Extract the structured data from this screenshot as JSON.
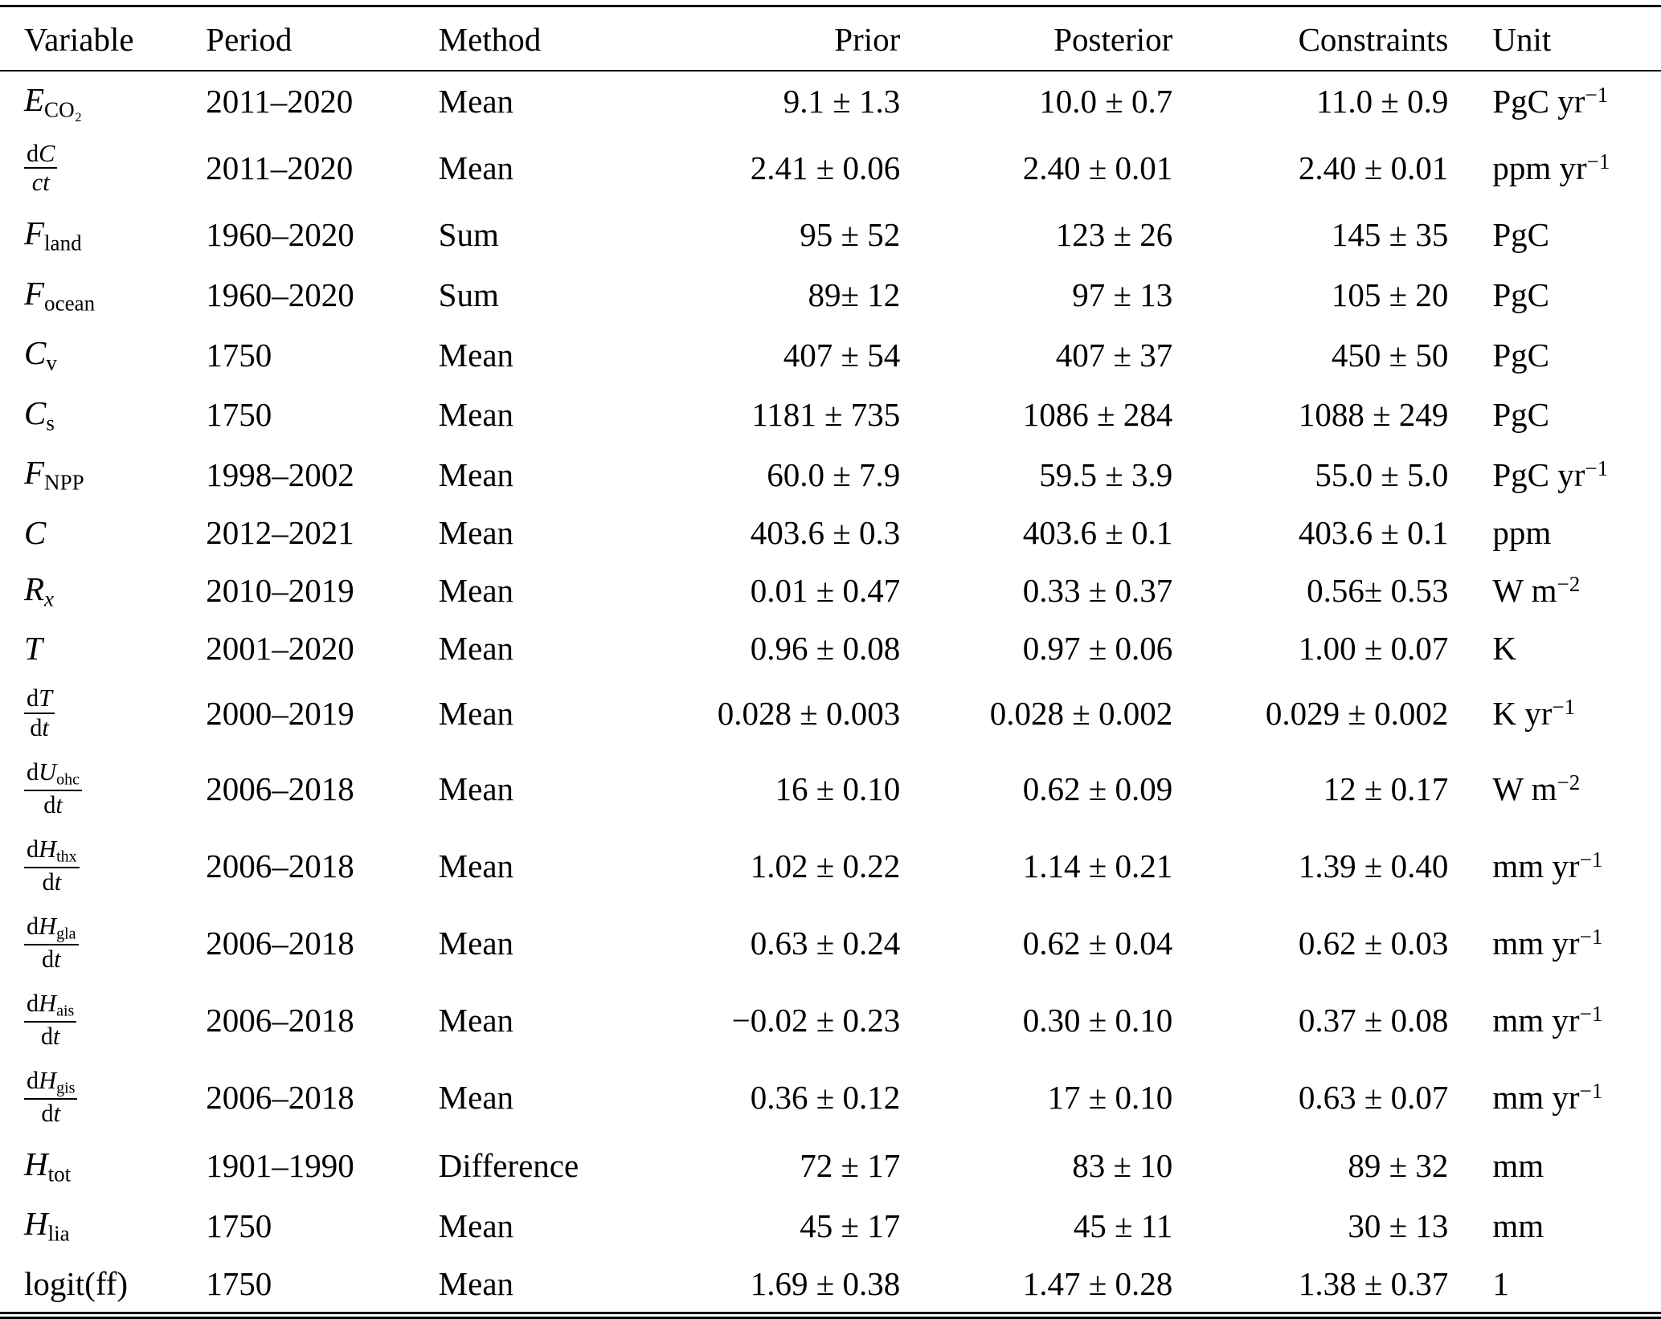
{
  "table": {
    "columns": [
      {
        "label": "Variable",
        "align": "left"
      },
      {
        "label": "Period",
        "align": "left"
      },
      {
        "label": "Method",
        "align": "left"
      },
      {
        "label": "Prior",
        "align": "right"
      },
      {
        "label": "Posterior",
        "align": "right"
      },
      {
        "label": "Constraints",
        "align": "right"
      },
      {
        "label": "Unit",
        "align": "left"
      }
    ],
    "rows": [
      {
        "variable": {
          "inline": [
            {
              "t": "E",
              "s": "it"
            },
            {
              "t": "CO₂",
              "s": "sub"
            }
          ]
        },
        "period": "2011–2020",
        "method": "Mean",
        "prior": "9.1 ± 1.3",
        "posterior": "10.0 ± 0.7",
        "constraints": "11.0 ± 0.9",
        "unit": {
          "text": "PgC yr",
          "sup": "−1"
        }
      },
      {
        "variable": {
          "frac": {
            "num": [
              {
                "t": "d",
                "s": "up"
              },
              {
                "t": "C",
                "s": "it"
              }
            ],
            "den": [
              {
                "t": "ct",
                "s": "it"
              }
            ]
          }
        },
        "period": "2011–2020",
        "method": "Mean",
        "prior": "2.41 ± 0.06",
        "posterior": "2.40 ± 0.01",
        "constraints": "2.40 ± 0.01",
        "unit": {
          "text": "ppm yr",
          "sup": "−1"
        }
      },
      {
        "variable": {
          "inline": [
            {
              "t": "F",
              "s": "it"
            },
            {
              "t": "land",
              "s": "sub"
            }
          ]
        },
        "period": "1960–2020",
        "method": "Sum",
        "prior": "95 ± 52",
        "posterior": "123 ± 26",
        "constraints": "145 ± 35",
        "unit": {
          "text": "PgC"
        }
      },
      {
        "variable": {
          "inline": [
            {
              "t": "F",
              "s": "it"
            },
            {
              "t": "ocean",
              "s": "sub"
            }
          ]
        },
        "period": "1960–2020",
        "method": "Sum",
        "prior": "89± 12",
        "posterior": "97 ± 13",
        "constraints": "105 ± 20",
        "unit": {
          "text": "PgC"
        }
      },
      {
        "variable": {
          "inline": [
            {
              "t": "C",
              "s": "it"
            },
            {
              "t": "v",
              "s": "sub"
            }
          ]
        },
        "period": "1750",
        "method": "Mean",
        "prior": "407 ± 54",
        "posterior": "407 ± 37",
        "constraints": "450 ± 50",
        "unit": {
          "text": "PgC"
        }
      },
      {
        "variable": {
          "inline": [
            {
              "t": "C",
              "s": "it"
            },
            {
              "t": "s",
              "s": "sub"
            }
          ]
        },
        "period": "1750",
        "method": "Mean",
        "prior": "1181 ± 735",
        "posterior": "1086 ± 284",
        "constraints": "1088 ± 249",
        "unit": {
          "text": "PgC"
        }
      },
      {
        "variable": {
          "inline": [
            {
              "t": "F",
              "s": "it"
            },
            {
              "t": "NPP",
              "s": "sub"
            }
          ]
        },
        "period": "1998–2002",
        "method": "Mean",
        "prior": "60.0 ± 7.9",
        "posterior": "59.5 ± 3.9",
        "constraints": "55.0 ± 5.0",
        "unit": {
          "text": "PgC yr",
          "sup": "−1"
        }
      },
      {
        "variable": {
          "inline": [
            {
              "t": "C",
              "s": "it"
            }
          ]
        },
        "period": "2012–2021",
        "method": "Mean",
        "prior": "403.6 ± 0.3",
        "posterior": "403.6 ± 0.1",
        "constraints": "403.6 ± 0.1",
        "unit": {
          "text": "ppm"
        }
      },
      {
        "variable": {
          "inline": [
            {
              "t": "R",
              "s": "it"
            },
            {
              "t": "x",
              "s": "subit"
            }
          ]
        },
        "period": "2010–2019",
        "method": "Mean",
        "prior": "0.01 ± 0.47",
        "posterior": "0.33 ± 0.37",
        "constraints": "0.56± 0.53",
        "unit": {
          "text": "W m",
          "sup": "−2"
        }
      },
      {
        "variable": {
          "inline": [
            {
              "t": "T",
              "s": "it"
            }
          ]
        },
        "period": "2001–2020",
        "method": "Mean",
        "prior": "0.96 ± 0.08",
        "posterior": "0.97 ± 0.06",
        "constraints": "1.00 ± 0.07",
        "unit": {
          "text": "K"
        }
      },
      {
        "variable": {
          "frac": {
            "num": [
              {
                "t": "d",
                "s": "up"
              },
              {
                "t": "T",
                "s": "it"
              }
            ],
            "den": [
              {
                "t": "d",
                "s": "up"
              },
              {
                "t": "t",
                "s": "it"
              }
            ]
          }
        },
        "period": "2000–2019",
        "method": "Mean",
        "prior": "0.028 ± 0.003",
        "posterior": "0.028 ± 0.002",
        "constraints": "0.029 ± 0.002",
        "unit": {
          "text": "K yr",
          "sup": "−1"
        }
      },
      {
        "variable": {
          "frac": {
            "num": [
              {
                "t": "d",
                "s": "up"
              },
              {
                "t": "U",
                "s": "it"
              },
              {
                "t": "ohc",
                "s": "sub"
              }
            ],
            "den": [
              {
                "t": "d",
                "s": "up"
              },
              {
                "t": "t",
                "s": "it"
              }
            ]
          }
        },
        "period": "2006–2018",
        "method": "Mean",
        "prior": "16 ± 0.10",
        "posterior": "0.62 ± 0.09",
        "constraints": "12 ± 0.17",
        "unit": {
          "text": "W m",
          "sup": "−2"
        }
      },
      {
        "variable": {
          "frac": {
            "num": [
              {
                "t": "d",
                "s": "up"
              },
              {
                "t": "H",
                "s": "it"
              },
              {
                "t": "thx",
                "s": "sub"
              }
            ],
            "den": [
              {
                "t": "d",
                "s": "up"
              },
              {
                "t": "t",
                "s": "it"
              }
            ]
          }
        },
        "period": "2006–2018",
        "method": "Mean",
        "prior": "1.02 ± 0.22",
        "posterior": "1.14 ± 0.21",
        "constraints": "1.39 ± 0.40",
        "unit": {
          "text": "mm yr",
          "sup": "−1"
        }
      },
      {
        "variable": {
          "frac": {
            "num": [
              {
                "t": "d",
                "s": "up"
              },
              {
                "t": "H",
                "s": "it"
              },
              {
                "t": "gla",
                "s": "sub"
              }
            ],
            "den": [
              {
                "t": "d",
                "s": "up"
              },
              {
                "t": "t",
                "s": "it"
              }
            ]
          }
        },
        "period": "2006–2018",
        "method": "Mean",
        "prior": "0.63 ± 0.24",
        "posterior": "0.62 ± 0.04",
        "constraints": "0.62 ± 0.03",
        "unit": {
          "text": "mm yr",
          "sup": "−1"
        }
      },
      {
        "variable": {
          "frac": {
            "num": [
              {
                "t": "d",
                "s": "up"
              },
              {
                "t": "H",
                "s": "it"
              },
              {
                "t": "ais",
                "s": "sub"
              }
            ],
            "den": [
              {
                "t": "d",
                "s": "up"
              },
              {
                "t": "t",
                "s": "it"
              }
            ]
          }
        },
        "period": "2006–2018",
        "method": "Mean",
        "prior": "−0.02 ± 0.23",
        "posterior": "0.30 ± 0.10",
        "constraints": "0.37 ± 0.08",
        "unit": {
          "text": "mm yr",
          "sup": "−1"
        }
      },
      {
        "variable": {
          "frac": {
            "num": [
              {
                "t": "d",
                "s": "up"
              },
              {
                "t": "H",
                "s": "it"
              },
              {
                "t": "gis",
                "s": "sub"
              }
            ],
            "den": [
              {
                "t": "d",
                "s": "up"
              },
              {
                "t": "t",
                "s": "it"
              }
            ]
          }
        },
        "period": "2006–2018",
        "method": "Mean",
        "prior": "0.36 ± 0.12",
        "posterior": "17 ± 0.10",
        "constraints": "0.63 ± 0.07",
        "unit": {
          "text": "mm yr",
          "sup": "−1"
        }
      },
      {
        "variable": {
          "inline": [
            {
              "t": "H",
              "s": "it"
            },
            {
              "t": "tot",
              "s": "sub"
            }
          ]
        },
        "period": "1901–1990",
        "method": "Difference",
        "prior": "72 ± 17",
        "posterior": "83 ± 10",
        "constraints": "89 ± 32",
        "unit": {
          "text": "mm"
        }
      },
      {
        "variable": {
          "inline": [
            {
              "t": "H",
              "s": "it"
            },
            {
              "t": "lia",
              "s": "sub"
            }
          ]
        },
        "period": "1750",
        "method": "Mean",
        "prior": "45 ± 17",
        "posterior": "45 ± 11",
        "constraints": "30 ± 13",
        "unit": {
          "text": "mm"
        }
      },
      {
        "variable": {
          "inline": [
            {
              "t": "logit(ff)",
              "s": "up"
            }
          ]
        },
        "period": "1750",
        "method": "Mean",
        "prior": "1.69 ± 0.38",
        "posterior": "1.47 ± 0.28",
        "constraints": "1.38 ± 0.37",
        "unit": {
          "text": "1"
        }
      }
    ]
  }
}
